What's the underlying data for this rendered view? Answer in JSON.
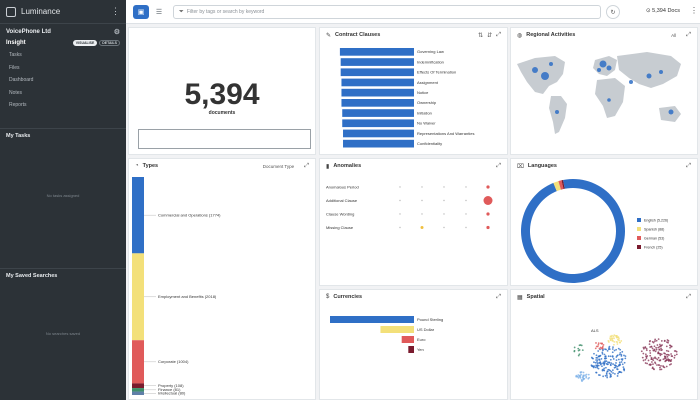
{
  "sidebar": {
    "logo": "Luminance",
    "project": "VoicePhone Ltd",
    "insight": "Insight",
    "pills": [
      "VISUALISE",
      "DETAILS"
    ],
    "nav": [
      "Tasks",
      "Files",
      "Dashboard",
      "Notes",
      "Reports"
    ],
    "tasks_title": "My Tasks",
    "tasks_empty": "No tasks assigned",
    "searches_title": "My Saved Searches",
    "searches_empty": "No searches saved"
  },
  "topbar": {
    "search_placeholder": "Filter by tags or search by keyword",
    "doc_count": "5,394",
    "doc_count_label": "Docs"
  },
  "documents": {
    "count": "5,394",
    "label": "documents"
  },
  "clauses": {
    "title": "Contract Clauses",
    "chart_data": {
      "type": "bar",
      "categories": [
        "Governing Law",
        "Indemnification",
        "Effects Of Termination",
        "Assignment",
        "Notice",
        "Ownership",
        "Initiation",
        "No Waiver",
        "Representations And Warranties",
        "Confidentiality"
      ],
      "values": [
        95,
        94,
        94,
        93,
        93,
        93,
        92,
        92,
        91,
        91
      ],
      "xlim": [
        0,
        100
      ],
      "colors": [
        "#2f6fc6"
      ]
    }
  },
  "regional": {
    "title": "Regional Activities",
    "filter_label": "All"
  },
  "types": {
    "title": "Types",
    "type_selector": "Document Type",
    "chart_data": {
      "type": "bar",
      "stacked": true,
      "categories": [
        "Commercial and Operations",
        "Employment and Benefits",
        "Corporate",
        "Property",
        "Finance",
        "Intellectual"
      ],
      "values": [
        1774,
        2018,
        1004,
        108,
        81,
        80
      ],
      "labels": [
        "Commercial and Operations (1774)",
        "Employment and Benefits (2018)",
        "Corporate (1004)",
        "Property (108)",
        "Finance (81)",
        "Intellectual (80)"
      ],
      "colors": [
        "#2f6fc6",
        "#f3e07a",
        "#e05a5a",
        "#7a1b2e",
        "#3f8f6a",
        "#5f7fa8"
      ]
    }
  },
  "anomalies": {
    "title": "Anomalies",
    "rows": [
      "Anomalous Period",
      "Additional Clause",
      "Clause Wording",
      "Missing Clause"
    ]
  },
  "languages": {
    "title": "Languages",
    "chart_data": {
      "type": "pie",
      "categories": [
        "English (5,226)",
        "Spanish (88)",
        "German (53)",
        "French (25)"
      ],
      "values": [
        5226,
        88,
        53,
        25
      ],
      "colors": [
        "#2f6fc6",
        "#f3e07a",
        "#e05a5a",
        "#7a1b2e"
      ]
    }
  },
  "currencies": {
    "title": "Currencies",
    "chart_data": {
      "type": "bar",
      "categories": [
        "Pound Sterling",
        "US Dollar",
        "Euro",
        "Yen"
      ],
      "values": [
        3105,
        1240,
        455,
        210
      ],
      "colors": [
        "#2f6fc6",
        "#f3e07a",
        "#e05a5a",
        "#7a1b2e"
      ]
    }
  },
  "spatial": {
    "title": "Spatial",
    "cluster_label": "ALS"
  }
}
